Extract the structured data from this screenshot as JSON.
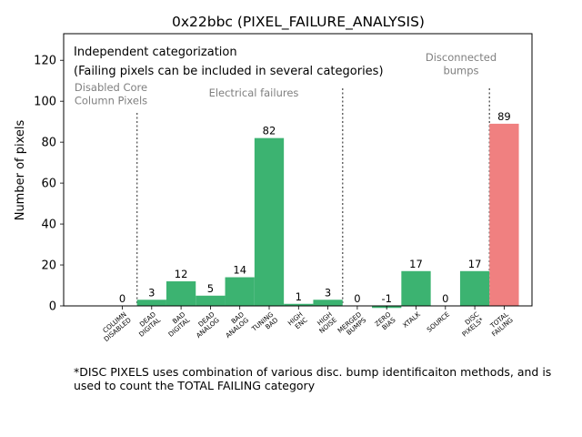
{
  "chart_data": {
    "type": "bar",
    "title": "0x22bbc (PIXEL_FAILURE_ANALYSIS)",
    "xlabel": "",
    "ylabel": "Number of pixels",
    "ylim": [
      0,
      133
    ],
    "yticks": [
      0,
      20,
      40,
      60,
      80,
      100,
      120
    ],
    "categories": [
      "COLUMN\nDISABLED",
      "DEAD\nDIGITAL",
      "BAD\nDIGITAL",
      "DEAD\nANALOG",
      "BAD\nANALOG",
      "TUNING\nBAD",
      "HIGH\nENC",
      "HIGH\nNOISE",
      "MERGED\nBUMPS",
      "ZERO\nBIAS",
      "XTALK",
      "SOURCE",
      "DISC\nPIXELS*",
      "TOTAL\nFAILING"
    ],
    "values": [
      0,
      3,
      12,
      5,
      14,
      82,
      1,
      3,
      0,
      -1,
      17,
      0,
      17,
      89
    ],
    "bar_colors": [
      "#3cb371",
      "#3cb371",
      "#3cb371",
      "#3cb371",
      "#3cb371",
      "#3cb371",
      "#3cb371",
      "#3cb371",
      "#3cb371",
      "#3cb371",
      "#3cb371",
      "#3cb371",
      "#3cb371",
      "#f08080"
    ],
    "legend_box": {
      "line1": "Independent categorization",
      "line2": "(Failing pixels can be included in several categories)"
    },
    "section_labels": [
      {
        "text": "Disabled Core\nColumn Pixels"
      },
      {
        "text": "Electrical failures"
      },
      {
        "text": "Disconnected\nbumps"
      }
    ],
    "grid": false
  },
  "footnote": "*DISC PIXELS uses combination of various disc. bump identificaiton methods, and is used to count the TOTAL FAILING category"
}
